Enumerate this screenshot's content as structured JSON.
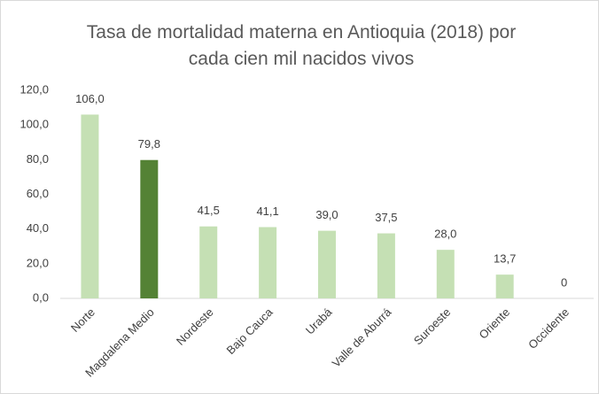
{
  "chart_data": {
    "type": "bar",
    "title": "Tasa de mortalidad materna en Antioquia (2018) por cada cien mil nacidos vivos",
    "categories": [
      "Norte",
      "Magdalena Medio",
      "Nordeste",
      "Bajo Cauca",
      "Urabá",
      "Valle de Aburrá",
      "Suroeste",
      "Oriente",
      "Occidente"
    ],
    "values": [
      106.0,
      79.8,
      41.5,
      41.1,
      39.0,
      37.5,
      28.0,
      13.7,
      0
    ],
    "value_labels": [
      "106,0",
      "79,8",
      "41,5",
      "41,1",
      "39,0",
      "37,5",
      "28,0",
      "13,7",
      "0"
    ],
    "colors": [
      "#c5e0b4",
      "#548235",
      "#c5e0b4",
      "#c5e0b4",
      "#c5e0b4",
      "#c5e0b4",
      "#c5e0b4",
      "#c5e0b4",
      "#c5e0b4"
    ],
    "ylim": [
      0,
      120
    ],
    "yticks": [
      {
        "value": 0,
        "label": "0,0"
      },
      {
        "value": 20,
        "label": "20,0"
      },
      {
        "value": 40,
        "label": "40,0"
      },
      {
        "value": 60,
        "label": "60,0"
      },
      {
        "value": 80,
        "label": "80,0"
      },
      {
        "value": 100,
        "label": "100,0"
      },
      {
        "value": 120,
        "label": "120,0"
      }
    ],
    "grid": false
  }
}
